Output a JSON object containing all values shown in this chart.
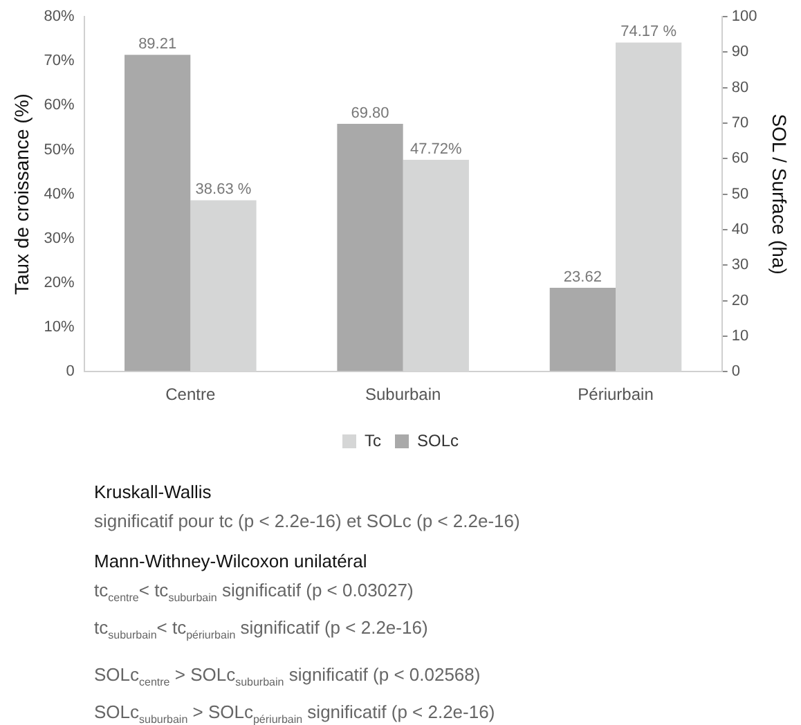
{
  "chart_data": {
    "type": "bar",
    "categories": [
      "Centre",
      "Suburbain",
      "Périurbain"
    ],
    "series": [
      {
        "name": "SOLc",
        "color": "#a9a9a9",
        "axis": "y2",
        "values": [
          89.21,
          69.8,
          23.62
        ],
        "value_labels": [
          "89.21",
          "69.80",
          "23.62"
        ]
      },
      {
        "name": "Tc",
        "color": "#d5d6d6",
        "values": [
          38.63,
          47.72,
          74.17
        ],
        "value_labels": [
          "38.63 %",
          "47.72%",
          "74.17 %"
        ]
      }
    ],
    "ylabel": "Taux de croissance (%)",
    "y2label": "SOL / Surface (ha)",
    "ylim": [
      0,
      80
    ],
    "yticks": [
      {
        "value": 0,
        "label": "0"
      },
      {
        "value": 10,
        "label": "10%"
      },
      {
        "value": 20,
        "label": "20%"
      },
      {
        "value": 30,
        "label": "30%"
      },
      {
        "value": 40,
        "label": "40%"
      },
      {
        "value": 50,
        "label": "50%"
      },
      {
        "value": 60,
        "label": "60%"
      },
      {
        "value": 70,
        "label": "70%"
      },
      {
        "value": 80,
        "label": "80%"
      }
    ],
    "y2lim": [
      0,
      100
    ],
    "y2ticks": [
      0,
      10,
      20,
      30,
      40,
      50,
      60,
      70,
      80,
      90,
      100
    ],
    "grid": false,
    "legend": "bottom",
    "annotations": [
      "Kruskall-Wallis",
      "significatif pour tc (p < 2.2e-16) et SOLc (p < 2.2e-16)",
      "Mann-Withney-Wilcoxon unilatéral",
      "tc$_{centre}$< tc$_{suburbain}$ significatif (p < 0.03027)",
      "tc$_{suburbain}$< tc$_{périurbain}$ significatif (p < 2.2e-16)",
      "SOLc$_{centre}$ > SOLc$_{suburbain}$ significatif (p < 0.02568)",
      "SOLc$_{suburbain}$ > SOLc$_{périurbain}$ significatif (p < 2.2e-16)"
    ]
  }
}
